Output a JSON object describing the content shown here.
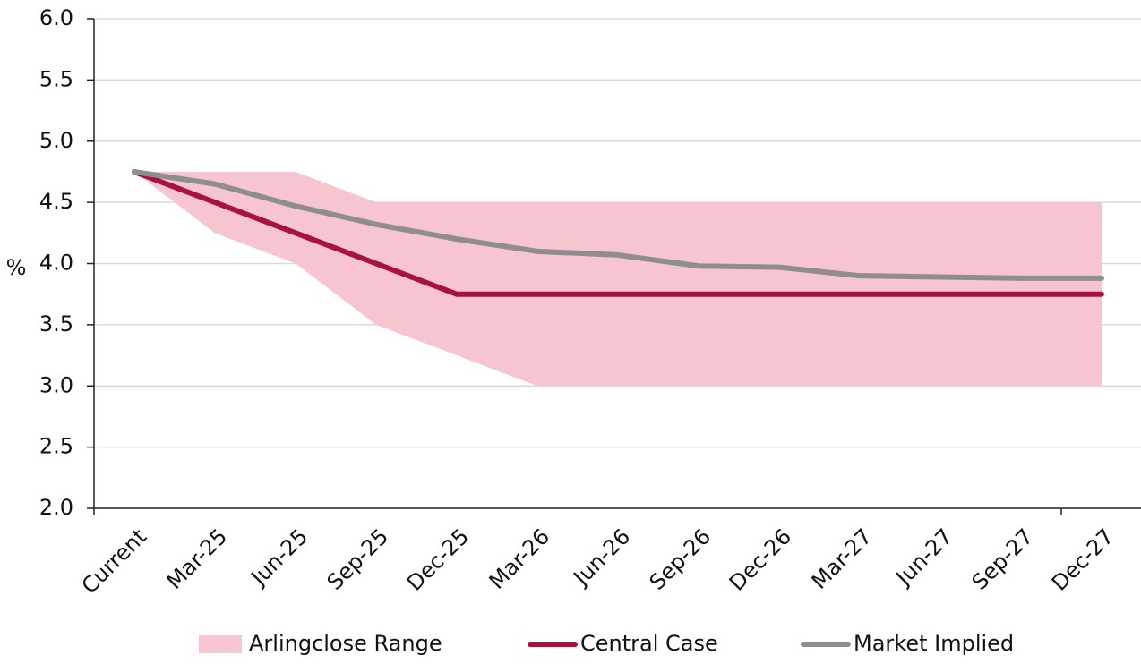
{
  "chart_data": {
    "type": "line",
    "y_label": "%",
    "categories": [
      "Current",
      "Mar-25",
      "Jun-25",
      "Sep-25",
      "Dec-25",
      "Mar-26",
      "Jun-26",
      "Sep-26",
      "Dec-26",
      "Mar-27",
      "Jun-27",
      "Sep-27",
      "Dec-27"
    ],
    "ylim": [
      2.0,
      6.0
    ],
    "yticks": [
      {
        "value": 2,
        "label": "2.0"
      },
      2.5,
      {
        "value": 3,
        "label": "3.0"
      },
      3.5,
      {
        "value": 4,
        "label": "4.0"
      },
      4.5,
      {
        "value": 5,
        "label": "5.0"
      },
      5.5,
      {
        "value": 6,
        "label": "6.0"
      }
    ],
    "grid": true,
    "legend": "bottom",
    "series": [
      {
        "name": "Arlingclose Range",
        "type": "area",
        "color": "#f7c5cf",
        "high": [
          4.75,
          4.75,
          4.75,
          4.5,
          4.5,
          4.5,
          4.5,
          4.5,
          4.5,
          4.5,
          4.5,
          4.5,
          4.5
        ],
        "low": [
          4.75,
          4.25,
          4.0,
          3.5,
          3.25,
          3.0,
          3.0,
          3.0,
          3.0,
          3.0,
          3.0,
          3.0,
          3.0
        ]
      },
      {
        "name": "Central Case",
        "type": "line",
        "color": "#a8123e",
        "values": [
          4.75,
          4.5,
          4.25,
          4.0,
          3.75,
          3.75,
          3.75,
          3.75,
          3.75,
          3.75,
          3.75,
          3.75,
          3.75
        ]
      },
      {
        "name": "Market Implied",
        "type": "line",
        "color": "#8e8e8e",
        "values": [
          4.75,
          4.65,
          4.47,
          4.32,
          4.2,
          4.1,
          4.07,
          3.98,
          3.97,
          3.9,
          3.89,
          3.88,
          3.88
        ]
      }
    ]
  }
}
